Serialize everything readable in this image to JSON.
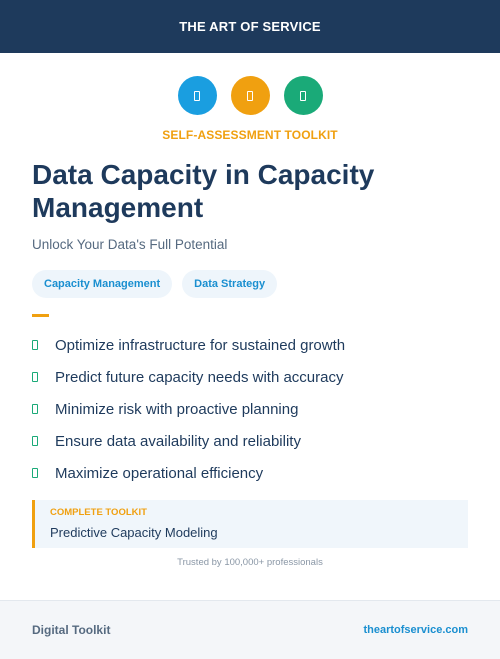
{
  "header": {
    "brand": "THE ART OF SERVICE"
  },
  "icons": [
    {
      "name": "database-icon",
      "color": "#1a9ee0"
    },
    {
      "name": "chart-icon",
      "color": "#f0a010"
    },
    {
      "name": "shield-icon",
      "color": "#1aaa78"
    }
  ],
  "kicker": "SELF-ASSESSMENT TOOLKIT",
  "title": "Data Capacity in Capacity Management",
  "subtitle": "Unlock Your Data's Full Potential",
  "tags": [
    "Capacity Management",
    "Data Strategy"
  ],
  "features": [
    "Optimize infrastructure for sustained growth",
    "Predict future capacity needs with accuracy",
    "Minimize risk with proactive planning",
    "Ensure data availability and reliability",
    "Maximize operational efficiency"
  ],
  "callout": {
    "label": "COMPLETE TOOLKIT",
    "text": "Predictive Capacity Modeling"
  },
  "trusted": "Trusted by 100,000+ professionals",
  "footer": {
    "left": "Digital Toolkit",
    "right": "theartofservice.com"
  }
}
